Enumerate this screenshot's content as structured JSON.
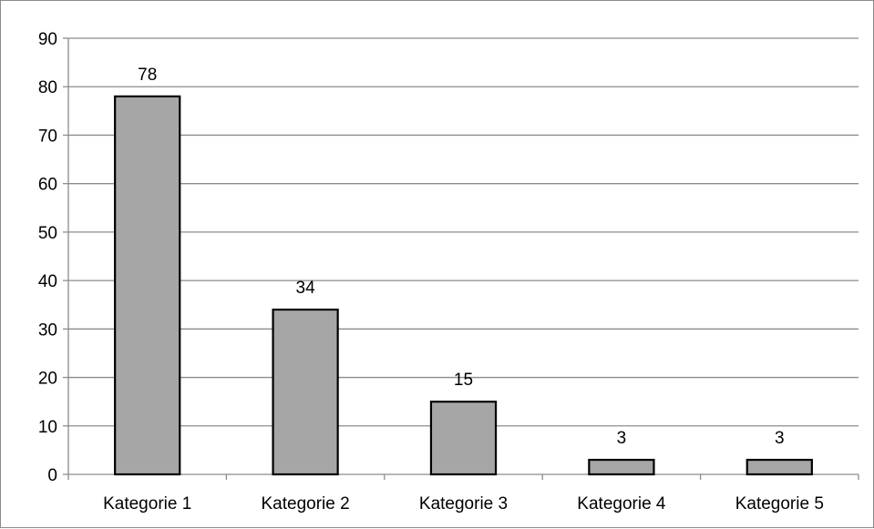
{
  "chart_data": {
    "type": "bar",
    "categories": [
      "Kategorie 1",
      "Kategorie 2",
      "Kategorie 3",
      "Kategorie 4",
      "Kategorie 5"
    ],
    "values": [
      78,
      34,
      15,
      3,
      3
    ],
    "data_labels": [
      "78",
      "34",
      "15",
      "3",
      "3"
    ],
    "yticks": [
      0,
      10,
      20,
      30,
      40,
      50,
      60,
      70,
      80,
      90
    ],
    "ylim": [
      0,
      90
    ],
    "grid": true,
    "legend": "none",
    "colors": {
      "bar_fill": "#a6a6a6",
      "bar_stroke": "#000000",
      "grid": "#8c8c8c",
      "axis": "#8c8c8c"
    }
  }
}
